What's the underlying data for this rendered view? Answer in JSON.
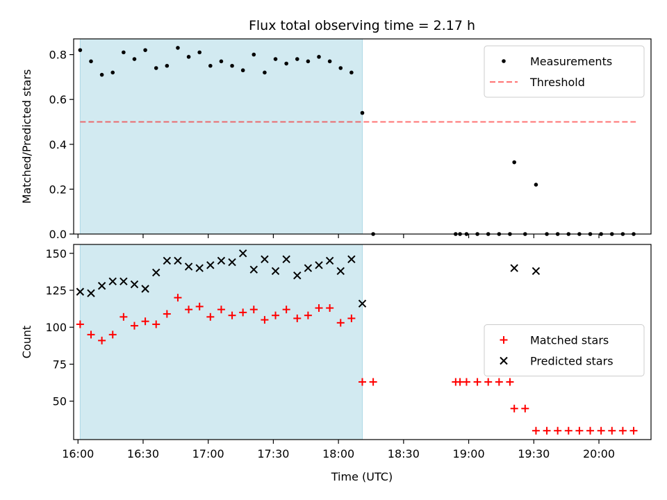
{
  "chart_data": {
    "type": "scatter",
    "title": "Flux total observing time = 2.17 h",
    "xlabel": "Time (UTC)",
    "xticks": [
      "16:00",
      "16:30",
      "17:00",
      "17:30",
      "18:00",
      "18:30",
      "19:00",
      "19:30",
      "20:00"
    ],
    "xlim": [
      "15:58",
      "20:24"
    ],
    "shaded_interval": [
      "16:01",
      "18:11"
    ],
    "colors": {
      "shade": "#add8e6",
      "measurements": "#000000",
      "threshold": "#ff0000",
      "matched": "#ff0000",
      "predicted": "#000000"
    },
    "panels": [
      {
        "ylabel": "Matched/Predicted stars",
        "ylim": [
          0,
          0.87
        ],
        "yticks": [
          "0.0",
          "0.2",
          "0.4",
          "0.6",
          "0.8"
        ],
        "legend_position": "top-right",
        "threshold": {
          "name": "Threshold",
          "y": 0.5,
          "x_range": [
            "16:01",
            "20:17"
          ],
          "style": "dashed"
        },
        "series": [
          {
            "name": "Measurements",
            "marker": "dot",
            "points": [
              [
                "16:01",
                0.82
              ],
              [
                "16:06",
                0.77
              ],
              [
                "16:11",
                0.71
              ],
              [
                "16:16",
                0.72
              ],
              [
                "16:21",
                0.81
              ],
              [
                "16:26",
                0.78
              ],
              [
                "16:31",
                0.82
              ],
              [
                "16:36",
                0.74
              ],
              [
                "16:41",
                0.75
              ],
              [
                "16:46",
                0.83
              ],
              [
                "16:51",
                0.79
              ],
              [
                "16:56",
                0.81
              ],
              [
                "17:01",
                0.75
              ],
              [
                "17:06",
                0.77
              ],
              [
                "17:11",
                0.75
              ],
              [
                "17:16",
                0.73
              ],
              [
                "17:21",
                0.8
              ],
              [
                "17:26",
                0.72
              ],
              [
                "17:31",
                0.78
              ],
              [
                "17:36",
                0.76
              ],
              [
                "17:41",
                0.78
              ],
              [
                "17:46",
                0.77
              ],
              [
                "17:51",
                0.79
              ],
              [
                "17:56",
                0.77
              ],
              [
                "18:01",
                0.74
              ],
              [
                "18:06",
                0.72
              ],
              [
                "18:11",
                0.54
              ],
              [
                "18:16",
                0.0
              ],
              [
                "18:54",
                0.0
              ],
              [
                "18:56",
                0.0
              ],
              [
                "18:59",
                0.0
              ],
              [
                "19:04",
                0.0
              ],
              [
                "19:09",
                0.0
              ],
              [
                "19:14",
                0.0
              ],
              [
                "19:19",
                0.0
              ],
              [
                "19:21",
                0.32
              ],
              [
                "19:26",
                0.0
              ],
              [
                "19:31",
                0.22
              ],
              [
                "19:36",
                0.0
              ],
              [
                "19:41",
                0.0
              ],
              [
                "19:46",
                0.0
              ],
              [
                "19:51",
                0.0
              ],
              [
                "19:56",
                0.0
              ],
              [
                "20:01",
                0.0
              ],
              [
                "20:06",
                0.0
              ],
              [
                "20:11",
                0.0
              ],
              [
                "20:16",
                0.0
              ]
            ]
          }
        ]
      },
      {
        "ylabel": "Count",
        "ylim": [
          24,
          156
        ],
        "yticks": [
          "50",
          "75",
          "100",
          "125",
          "150"
        ],
        "legend_position": "center-right",
        "series": [
          {
            "name": "Matched stars",
            "marker": "plus",
            "points": [
              [
                "16:01",
                102
              ],
              [
                "16:06",
                95
              ],
              [
                "16:11",
                91
              ],
              [
                "16:16",
                95
              ],
              [
                "16:21",
                107
              ],
              [
                "16:26",
                101
              ],
              [
                "16:31",
                104
              ],
              [
                "16:36",
                102
              ],
              [
                "16:41",
                109
              ],
              [
                "16:46",
                120
              ],
              [
                "16:51",
                112
              ],
              [
                "16:56",
                114
              ],
              [
                "17:01",
                107
              ],
              [
                "17:06",
                112
              ],
              [
                "17:11",
                108
              ],
              [
                "17:16",
                110
              ],
              [
                "17:21",
                112
              ],
              [
                "17:26",
                105
              ],
              [
                "17:31",
                108
              ],
              [
                "17:36",
                112
              ],
              [
                "17:41",
                106
              ],
              [
                "17:46",
                108
              ],
              [
                "17:51",
                113
              ],
              [
                "17:56",
                113
              ],
              [
                "18:01",
                103
              ],
              [
                "18:06",
                106
              ],
              [
                "18:11",
                63
              ],
              [
                "18:16",
                63
              ],
              [
                "18:54",
                63
              ],
              [
                "18:56",
                63
              ],
              [
                "18:59",
                63
              ],
              [
                "19:04",
                63
              ],
              [
                "19:09",
                63
              ],
              [
                "19:14",
                63
              ],
              [
                "19:19",
                63
              ],
              [
                "19:21",
                45
              ],
              [
                "19:26",
                45
              ],
              [
                "19:31",
                30
              ],
              [
                "19:36",
                30
              ],
              [
                "19:41",
                30
              ],
              [
                "19:46",
                30
              ],
              [
                "19:51",
                30
              ],
              [
                "19:56",
                30
              ],
              [
                "20:01",
                30
              ],
              [
                "20:06",
                30
              ],
              [
                "20:11",
                30
              ],
              [
                "20:16",
                30
              ]
            ]
          },
          {
            "name": "Predicted stars",
            "marker": "x",
            "points": [
              [
                "16:01",
                124
              ],
              [
                "16:06",
                123
              ],
              [
                "16:11",
                128
              ],
              [
                "16:16",
                131
              ],
              [
                "16:21",
                131
              ],
              [
                "16:26",
                129
              ],
              [
                "16:31",
                126
              ],
              [
                "16:36",
                137
              ],
              [
                "16:41",
                145
              ],
              [
                "16:46",
                145
              ],
              [
                "16:51",
                141
              ],
              [
                "16:56",
                140
              ],
              [
                "17:01",
                142
              ],
              [
                "17:06",
                145
              ],
              [
                "17:11",
                144
              ],
              [
                "17:16",
                150
              ],
              [
                "17:21",
                139
              ],
              [
                "17:26",
                146
              ],
              [
                "17:31",
                138
              ],
              [
                "17:36",
                146
              ],
              [
                "17:41",
                135
              ],
              [
                "17:46",
                140
              ],
              [
                "17:51",
                142
              ],
              [
                "17:56",
                145
              ],
              [
                "18:01",
                138
              ],
              [
                "18:06",
                146
              ],
              [
                "18:11",
                116
              ],
              [
                "19:21",
                140
              ],
              [
                "19:31",
                138
              ]
            ]
          }
        ]
      }
    ]
  }
}
